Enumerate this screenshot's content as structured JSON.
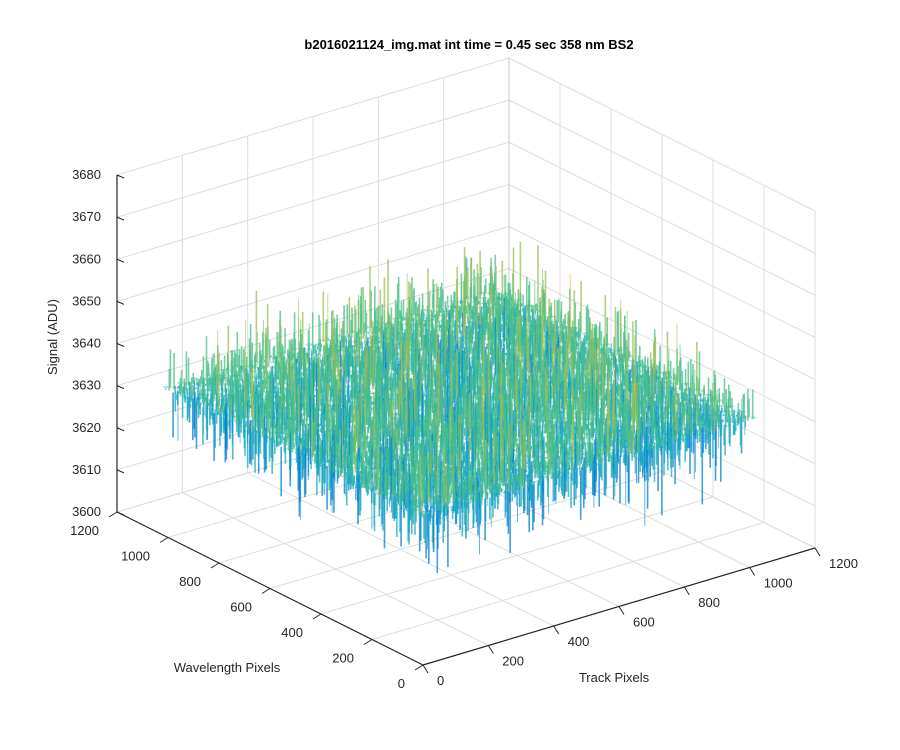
{
  "chart_data": {
    "type": "surface",
    "title": "b2016021124_img.mat int time = 0.45 sec  358 nm BS2",
    "xlabel": "Track Pixels",
    "ylabel": "Wavelength Pixels",
    "zlabel": "Signal (ADU)",
    "xlim": [
      0,
      1200
    ],
    "ylim": [
      0,
      1200
    ],
    "zlim": [
      3600,
      3680
    ],
    "x_ticks": [
      0,
      200,
      400,
      600,
      800,
      1000,
      1200
    ],
    "y_ticks": [
      0,
      200,
      400,
      600,
      800,
      1000,
      1200
    ],
    "z_ticks": [
      3600,
      3610,
      3620,
      3630,
      3640,
      3650,
      3660,
      3670,
      3680
    ],
    "x_tick_labels": [
      "0",
      "200",
      "400",
      "600",
      "800",
      "1000",
      "1200"
    ],
    "y_tick_labels": [
      "0",
      "200",
      "400",
      "600",
      "800",
      "1000",
      "1200"
    ],
    "z_tick_labels": [
      "3600",
      "3610",
      "3620",
      "3630",
      "3640",
      "3650",
      "3660",
      "3670",
      "3680"
    ],
    "data_extent": {
      "x": [
        0,
        1024
      ],
      "y": [
        0,
        1024
      ]
    },
    "signal_mean": 3635,
    "signal_range": [
      3605,
      3677
    ],
    "colormap": "parula",
    "colors": [
      "#0d47b8",
      "#0080d0",
      "#1aa9bc",
      "#49bd8a",
      "#9bbf5a",
      "#d9b83a",
      "#f2d83c"
    ],
    "grid": true
  }
}
